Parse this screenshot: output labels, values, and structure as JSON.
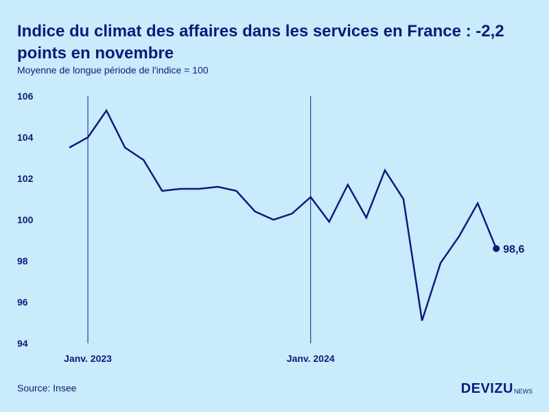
{
  "header": {
    "title": "Indice du climat des affaires dans les services en France : -2,2 points en novembre",
    "subtitle": "Moyenne de longue période de l'indice = 100"
  },
  "footer": {
    "source": "Source: Insee",
    "brand_main": "DEVIZU",
    "brand_sub": "NEWS"
  },
  "colors": {
    "background": "#c9ebfb",
    "line": "#0d1a7a",
    "text": "#0d1a7a"
  },
  "chart_data": {
    "type": "line",
    "title": "Indice du climat des affaires dans les services en France : -2,2 points en novembre",
    "subtitle": "Moyenne de longue période de l'indice = 100",
    "xlabel": "",
    "ylabel": "",
    "ylim": [
      94,
      106
    ],
    "y_ticks": [
      94,
      96,
      98,
      100,
      102,
      104,
      106
    ],
    "y_tick_labels": [
      "94",
      "96",
      "98",
      "100",
      "102",
      "104",
      "106"
    ],
    "x": [
      "2022-12",
      "2023-01",
      "2023-02",
      "2023-03",
      "2023-04",
      "2023-05",
      "2023-06",
      "2023-07",
      "2023-08",
      "2023-09",
      "2023-10",
      "2023-11",
      "2023-12",
      "2024-01",
      "2024-02",
      "2024-03",
      "2024-04",
      "2024-05",
      "2024-06",
      "2024-07",
      "2024-08",
      "2024-09",
      "2024-10",
      "2024-11"
    ],
    "x_tick_labels": [
      {
        "x": "2023-01",
        "label": "Janv. 2023"
      },
      {
        "x": "2024-01",
        "label": "Janv. 2024"
      }
    ],
    "series": [
      {
        "values": [
          103.5,
          104.0,
          105.3,
          103.5,
          102.9,
          101.4,
          101.5,
          101.5,
          101.6,
          101.4,
          100.4,
          100.0,
          100.3,
          101.1,
          99.9,
          101.7,
          100.1,
          102.4,
          101.0,
          95.1,
          97.9,
          99.2,
          100.8,
          98.6
        ]
      }
    ],
    "annotations": [
      {
        "x": "2024-11",
        "value": 98.6,
        "label": "98,6"
      }
    ],
    "grid": false,
    "legend": "none"
  }
}
